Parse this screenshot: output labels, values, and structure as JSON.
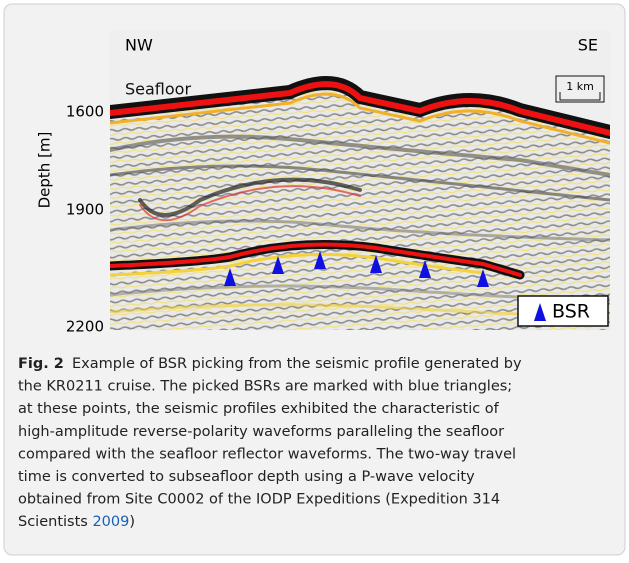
{
  "figure": {
    "axis_label": "Depth [m]",
    "ticks": [
      "1600",
      "1900",
      "2200"
    ],
    "direction_left": "NW",
    "direction_right": "SE",
    "seafloor_label": "Seafloor",
    "scale_bar": "1 km",
    "legend": "BSR"
  },
  "caption": {
    "label": "Fig. 2",
    "lines": [
      "Example of BSR picking from the seismic profile generated by",
      "the KR0211 cruise. The picked BSRs are marked with blue triangles;",
      "at these points, the seismic profiles exhibited the characteristic of",
      "high-amplitude reverse-polarity waveforms paralleling the seafloor",
      "compared with the seafloor reflector waveforms. The two-way travel",
      "time is converted to subseafloor depth using a P-wave velocity",
      "obtained from Site C0002 of the IODP Expeditions (Expedition 314"
    ],
    "last_line_start": "Scientists",
    "citation_year": "2009",
    "last_line_end": ")"
  }
}
